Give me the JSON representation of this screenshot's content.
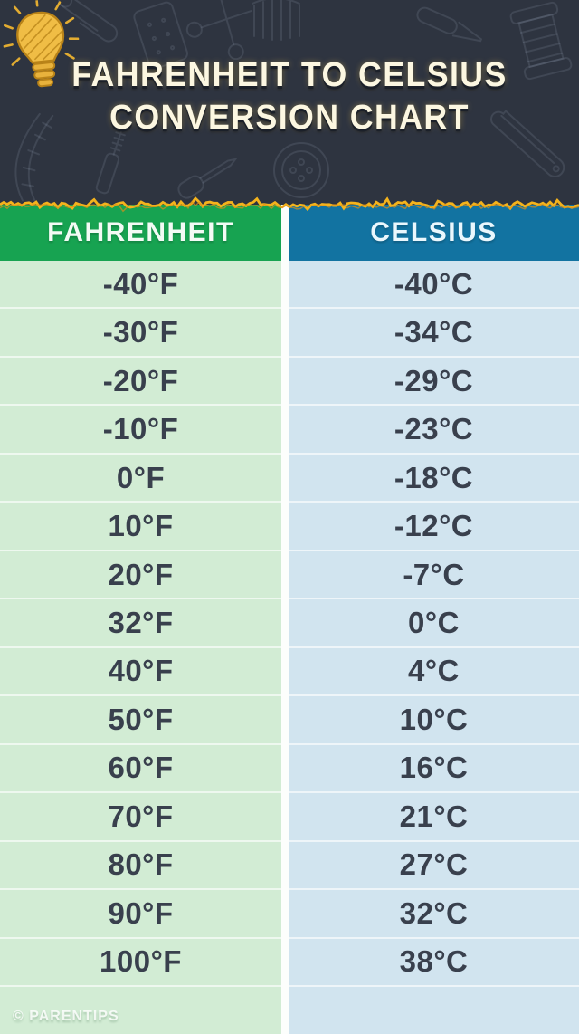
{
  "header": {
    "title_line1": "FAHRENHEIT TO CELSIUS",
    "title_line2": "CONVERSION CHART"
  },
  "table": {
    "columns": [
      {
        "label": "FAHRENHEIT",
        "header_color": "#17a351",
        "row_color": "#d2ecd4"
      },
      {
        "label": "CELSIUS",
        "header_color": "#1273a1",
        "row_color": "#d1e4ef"
      }
    ],
    "rows": [
      {
        "fahrenheit": "-40°F",
        "celsius": "-40°C"
      },
      {
        "fahrenheit": "-30°F",
        "celsius": "-34°C"
      },
      {
        "fahrenheit": "-20°F",
        "celsius": "-29°C"
      },
      {
        "fahrenheit": "-10°F",
        "celsius": "-23°C"
      },
      {
        "fahrenheit": "0°F",
        "celsius": "-18°C"
      },
      {
        "fahrenheit": "10°F",
        "celsius": "-12°C"
      },
      {
        "fahrenheit": "20°F",
        "celsius": "-7°C"
      },
      {
        "fahrenheit": "32°F",
        "celsius": "0°C"
      },
      {
        "fahrenheit": "40°F",
        "celsius": "4°C"
      },
      {
        "fahrenheit": "50°F",
        "celsius": "10°C"
      },
      {
        "fahrenheit": "60°F",
        "celsius": "16°C"
      },
      {
        "fahrenheit": "70°F",
        "celsius": "21°C"
      },
      {
        "fahrenheit": "80°F",
        "celsius": "27°C"
      },
      {
        "fahrenheit": "90°F",
        "celsius": "32°C"
      },
      {
        "fahrenheit": "100°F",
        "celsius": "38°C"
      }
    ]
  },
  "footer": {
    "credit": "© PARENTIPS"
  },
  "colors": {
    "background_dark": "#2e3440",
    "squiggle_yellow": "#f4b31c",
    "cell_text": "#39404d",
    "column_gap_white": "#fcfefc",
    "title_text": "#fcf7e1",
    "lightbulb_yellow": "#f0bd45"
  },
  "chart_data": {
    "type": "table",
    "title": "FAHRENHEIT TO CELSIUS CONVERSION CHART",
    "columns": [
      "FAHRENHEIT",
      "CELSIUS"
    ],
    "fahrenheit_values": [
      -40,
      -30,
      -20,
      -10,
      0,
      10,
      20,
      32,
      40,
      50,
      60,
      70,
      80,
      90,
      100
    ],
    "celsius_values": [
      -40,
      -34,
      -29,
      -23,
      -18,
      -12,
      -7,
      0,
      4,
      10,
      16,
      21,
      27,
      32,
      38
    ]
  }
}
